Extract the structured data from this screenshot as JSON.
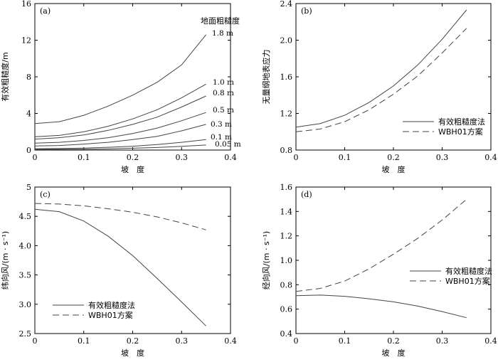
{
  "chart_data": [
    {
      "type": "line",
      "panel_label": "(a)",
      "xlabel": "坡　度",
      "ylabel": "有效粗糙度/m",
      "xlim": [
        0,
        0.4
      ],
      "ylim": [
        0,
        16
      ],
      "xticks": [
        0,
        0.1,
        0.2,
        0.3,
        0.4
      ],
      "xtick_labels": [
        "0",
        "0.1",
        "0.2",
        "0.3",
        "0.4"
      ],
      "yticks": [
        0,
        4,
        8,
        12,
        16
      ],
      "ytick_labels": [
        "0",
        "4",
        "8",
        "12",
        "16"
      ],
      "legend_title": "地面粗糙度",
      "x": [
        0,
        0.05,
        0.1,
        0.15,
        0.2,
        0.25,
        0.3,
        0.35
      ],
      "series": [
        {
          "name": "1.8 m",
          "values": [
            2.9,
            3.1,
            3.8,
            4.8,
            6.0,
            7.4,
            9.3,
            12.6
          ]
        },
        {
          "name": "1.0 m",
          "values": [
            1.45,
            1.6,
            2.0,
            2.6,
            3.4,
            4.4,
            5.7,
            7.2
          ]
        },
        {
          "name": "0.8 m",
          "values": [
            1.2,
            1.35,
            1.65,
            2.15,
            2.8,
            3.6,
            4.7,
            5.9
          ]
        },
        {
          "name": "0.5 m",
          "values": [
            0.75,
            0.85,
            1.05,
            1.35,
            1.8,
            2.4,
            3.2,
            4.1
          ]
        },
        {
          "name": "0.3 m",
          "values": [
            0.45,
            0.5,
            0.65,
            0.85,
            1.15,
            1.5,
            2.1,
            2.8
          ]
        },
        {
          "name": "0.1 m",
          "values": [
            0.15,
            0.18,
            0.22,
            0.3,
            0.42,
            0.6,
            0.85,
            1.15
          ]
        },
        {
          "name": "0.05 m",
          "values": [
            0.07,
            0.08,
            0.1,
            0.14,
            0.2,
            0.28,
            0.4,
            0.55
          ]
        }
      ]
    },
    {
      "type": "line",
      "panel_label": "(b)",
      "xlabel": "坡　度",
      "ylabel": "无量纲地表应力",
      "xlim": [
        0,
        0.4
      ],
      "ylim": [
        0.8,
        2.4
      ],
      "xticks": [
        0,
        0.1,
        0.2,
        0.3,
        0.4
      ],
      "xtick_labels": [
        "0",
        "0.1",
        "0.2",
        "0.3",
        "0.4"
      ],
      "yticks": [
        0.8,
        1.2,
        1.6,
        2.0,
        2.4
      ],
      "ytick_labels": [
        "0.8",
        "1.2",
        "1.6",
        "2.0",
        "2.4"
      ],
      "x": [
        0,
        0.05,
        0.1,
        0.15,
        0.2,
        0.25,
        0.3,
        0.35
      ],
      "series": [
        {
          "name": "有效粗糙度法",
          "style": "solid",
          "values": [
            1.05,
            1.09,
            1.18,
            1.32,
            1.5,
            1.73,
            2.01,
            2.33
          ]
        },
        {
          "name": "WBH01方案",
          "style": "dashed",
          "values": [
            1.0,
            1.03,
            1.11,
            1.24,
            1.41,
            1.61,
            1.86,
            2.13
          ]
        }
      ]
    },
    {
      "type": "line",
      "panel_label": "(c)",
      "xlabel": "坡　度",
      "ylabel": "纬向风/(m · s⁻¹)",
      "xlim": [
        0,
        0.4
      ],
      "ylim": [
        2.5,
        5
      ],
      "xticks": [
        0,
        0.1,
        0.2,
        0.3,
        0.4
      ],
      "xtick_labels": [
        "0",
        "0.1",
        "0.2",
        "0.3",
        "0.4"
      ],
      "yticks": [
        2.5,
        3.0,
        3.5,
        4.0,
        4.5,
        5
      ],
      "ytick_labels": [
        "2.5",
        "3.0",
        "3.5",
        "4.0",
        "4.5",
        "5"
      ],
      "x": [
        0,
        0.05,
        0.1,
        0.15,
        0.2,
        0.25,
        0.3,
        0.35
      ],
      "series": [
        {
          "name": "有效粗糙度法",
          "style": "solid",
          "values": [
            4.62,
            4.58,
            4.42,
            4.16,
            3.83,
            3.44,
            3.04,
            2.63
          ]
        },
        {
          "name": "WBH01方案",
          "style": "dashed",
          "values": [
            4.72,
            4.71,
            4.68,
            4.63,
            4.57,
            4.49,
            4.39,
            4.27
          ]
        }
      ]
    },
    {
      "type": "line",
      "panel_label": "(d)",
      "xlabel": "坡　度",
      "ylabel": "经向风/(m · s⁻¹)",
      "xlim": [
        0,
        0.4
      ],
      "ylim": [
        0.4,
        1.6
      ],
      "xticks": [
        0,
        0.1,
        0.2,
        0.3,
        0.4
      ],
      "xtick_labels": [
        "0",
        "0.1",
        "0.2",
        "0.3",
        "0.4"
      ],
      "yticks": [
        0.4,
        0.6,
        0.8,
        1.0,
        1.2,
        1.4,
        1.6
      ],
      "ytick_labels": [
        "0.4",
        "0.6",
        "0.8",
        "1.0",
        "1.2",
        "1.4",
        "1.6"
      ],
      "x": [
        0,
        0.05,
        0.1,
        0.15,
        0.2,
        0.25,
        0.3,
        0.35
      ],
      "series": [
        {
          "name": "有效粗糙度法",
          "style": "solid",
          "values": [
            0.71,
            0.715,
            0.705,
            0.685,
            0.66,
            0.625,
            0.58,
            0.53
          ]
        },
        {
          "name": "WBH01方案",
          "style": "dashed",
          "values": [
            0.745,
            0.77,
            0.83,
            0.93,
            1.05,
            1.18,
            1.33,
            1.5
          ]
        }
      ]
    }
  ]
}
